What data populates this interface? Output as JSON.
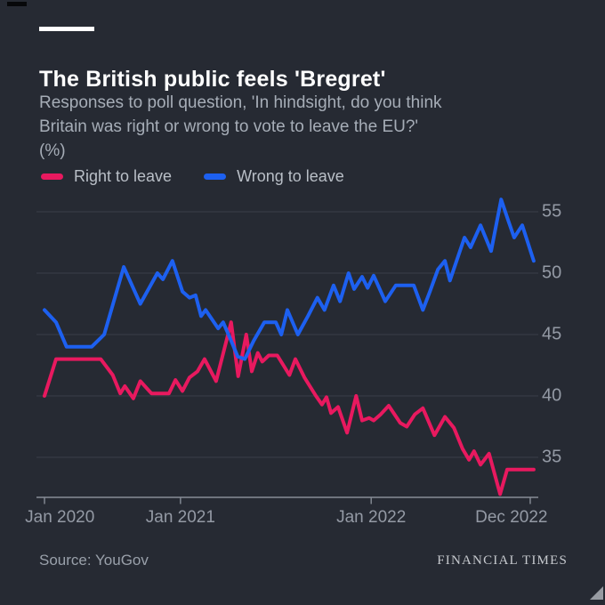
{
  "header": {
    "title": "The British public feels 'Bregret'",
    "subtitle_lines": [
      "Responses to poll question, 'In hindsight, do you think",
      "Britain was right or wrong to vote to leave the EU?'",
      "(%)"
    ]
  },
  "legend": [
    {
      "label": "Right to leave",
      "color": "#e8195f"
    },
    {
      "label": "Wrong to leave",
      "color": "#1d60f0"
    }
  ],
  "meta": {
    "source": "Source: YouGov",
    "brand": "FINANCIAL TIMES"
  },
  "chart_data": {
    "type": "line",
    "title": "The British public feels 'Bregret'",
    "ylabel": "%",
    "grid": "horizontal only",
    "legend_position": "top-left above plot",
    "x_axis": {
      "note": "survey dates; tick pos = percent of distance along horizontal axis",
      "ticks": [
        {
          "label": "Jan 2020",
          "pos": 1.6
        },
        {
          "label": "Jan 2021",
          "pos": 28.7
        },
        {
          "label": "Jan 2022",
          "pos": 66.7
        },
        {
          "label": "Dec 2022",
          "pos": 98.4
        }
      ]
    },
    "y_axis": {
      "ticks": [
        55,
        50,
        45,
        40,
        35
      ],
      "range": [
        31.7,
        56.9
      ],
      "labels_side": "right"
    },
    "series": [
      {
        "name": "Right to leave",
        "color": "#e8195f",
        "points": [
          [
            1.6,
            40
          ],
          [
            3.9,
            43
          ],
          [
            12.8,
            43
          ],
          [
            15.2,
            41.7
          ],
          [
            16.7,
            40.2
          ],
          [
            17.6,
            40.8
          ],
          [
            19.3,
            39.8
          ],
          [
            20.7,
            41.2
          ],
          [
            22.9,
            40.2
          ],
          [
            26.4,
            40.2
          ],
          [
            27.7,
            41.3
          ],
          [
            29.1,
            40.4
          ],
          [
            30.5,
            41.5
          ],
          [
            32.1,
            42
          ],
          [
            33.5,
            43
          ],
          [
            35.8,
            41.2
          ],
          [
            38.8,
            46
          ],
          [
            40.2,
            41.6
          ],
          [
            41.8,
            45
          ],
          [
            42.9,
            42
          ],
          [
            44.1,
            43.5
          ],
          [
            45.0,
            42.8
          ],
          [
            46.3,
            43.3
          ],
          [
            48.0,
            43.3
          ],
          [
            50.4,
            41.7
          ],
          [
            51.6,
            43
          ],
          [
            53.4,
            41.5
          ],
          [
            55.7,
            40
          ],
          [
            56.9,
            39.3
          ],
          [
            57.8,
            39.9
          ],
          [
            58.7,
            38.6
          ],
          [
            60.1,
            39.1
          ],
          [
            61.9,
            37
          ],
          [
            63.7,
            40
          ],
          [
            64.9,
            38
          ],
          [
            66.3,
            38.2
          ],
          [
            67.2,
            38
          ],
          [
            68.6,
            38.5
          ],
          [
            70.2,
            39.2
          ],
          [
            72.5,
            37.8
          ],
          [
            73.8,
            37.5
          ],
          [
            75.4,
            38.5
          ],
          [
            77.0,
            39
          ],
          [
            79.3,
            36.8
          ],
          [
            81.4,
            38.3
          ],
          [
            83.2,
            37.4
          ],
          [
            84.9,
            35.7
          ],
          [
            86.2,
            34.8
          ],
          [
            87.2,
            35.5
          ],
          [
            88.5,
            34.4
          ],
          [
            90.2,
            35.3
          ],
          [
            92.4,
            32
          ],
          [
            93.8,
            34
          ],
          [
            99.1,
            34
          ]
        ]
      },
      {
        "name": "Wrong to leave",
        "color": "#1d60f0",
        "points": [
          [
            1.6,
            47
          ],
          [
            3.9,
            46
          ],
          [
            6.0,
            44
          ],
          [
            11.0,
            44
          ],
          [
            13.5,
            45
          ],
          [
            17.4,
            50.5
          ],
          [
            20.7,
            47.5
          ],
          [
            24.1,
            50
          ],
          [
            25.2,
            49.5
          ],
          [
            27.1,
            51
          ],
          [
            29.1,
            48.5
          ],
          [
            30.5,
            48
          ],
          [
            31.7,
            48.2
          ],
          [
            32.8,
            46.5
          ],
          [
            33.7,
            47
          ],
          [
            36.2,
            45.5
          ],
          [
            37.2,
            46
          ],
          [
            38.8,
            44.5
          ],
          [
            40.1,
            43.2
          ],
          [
            41.5,
            43
          ],
          [
            43.3,
            44.5
          ],
          [
            45.4,
            46
          ],
          [
            47.7,
            46
          ],
          [
            48.8,
            45
          ],
          [
            50.0,
            47
          ],
          [
            52.1,
            45
          ],
          [
            54.1,
            46.5
          ],
          [
            56.0,
            48
          ],
          [
            57.4,
            47
          ],
          [
            59.2,
            49
          ],
          [
            60.5,
            47.7
          ],
          [
            62.2,
            50
          ],
          [
            63.3,
            48.7
          ],
          [
            64.9,
            49.7
          ],
          [
            66.0,
            48.8
          ],
          [
            67.2,
            49.8
          ],
          [
            69.5,
            47.7
          ],
          [
            71.6,
            49
          ],
          [
            75.2,
            49
          ],
          [
            77.0,
            47
          ],
          [
            78.4,
            48.5
          ],
          [
            80.0,
            50.3
          ],
          [
            81.4,
            51
          ],
          [
            82.4,
            49.4
          ],
          [
            85.3,
            52.9
          ],
          [
            86.5,
            52.1
          ],
          [
            88.5,
            53.9
          ],
          [
            90.6,
            51.8
          ],
          [
            92.6,
            56
          ],
          [
            94.0,
            54.3
          ],
          [
            95.2,
            52.9
          ],
          [
            96.8,
            53.9
          ],
          [
            99.1,
            51
          ]
        ]
      }
    ]
  }
}
